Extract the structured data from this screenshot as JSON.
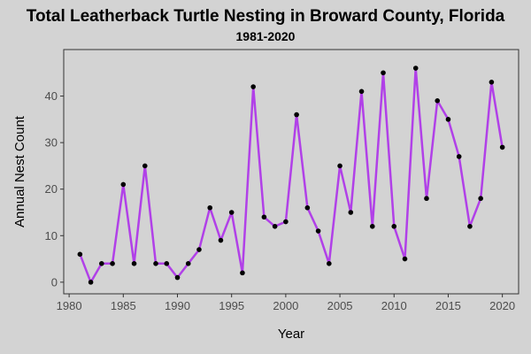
{
  "chart_data": {
    "type": "line",
    "title": "Total Leatherback Turtle Nesting in Broward County, Florida",
    "subtitle": "1981-2020",
    "xlabel": "Year",
    "ylabel": "Annual Nest Count",
    "xlim": [
      1979.5,
      2021.5
    ],
    "ylim": [
      -2.5,
      50
    ],
    "x_ticks": [
      1980,
      1985,
      1990,
      1995,
      2000,
      2005,
      2010,
      2015,
      2020
    ],
    "y_ticks": [
      0,
      10,
      20,
      30,
      40
    ],
    "grid": false,
    "legend": "none",
    "line_color": "#b140e8",
    "point_color": "#000000",
    "background_color": "#d3d3d3",
    "x": [
      1981,
      1982,
      1983,
      1984,
      1985,
      1986,
      1987,
      1988,
      1989,
      1990,
      1991,
      1992,
      1993,
      1994,
      1995,
      1996,
      1997,
      1998,
      1999,
      2000,
      2001,
      2002,
      2003,
      2004,
      2005,
      2006,
      2007,
      2008,
      2009,
      2010,
      2011,
      2012,
      2013,
      2014,
      2015,
      2016,
      2017,
      2018,
      2019,
      2020
    ],
    "values": [
      6,
      0,
      4,
      4,
      21,
      4,
      25,
      4,
      4,
      1,
      4,
      7,
      16,
      9,
      15,
      2,
      42,
      14,
      12,
      13,
      36,
      16,
      11,
      4,
      25,
      15,
      41,
      12,
      45,
      12,
      5,
      46,
      18,
      39,
      35,
      27,
      12,
      18,
      43,
      29
    ]
  }
}
